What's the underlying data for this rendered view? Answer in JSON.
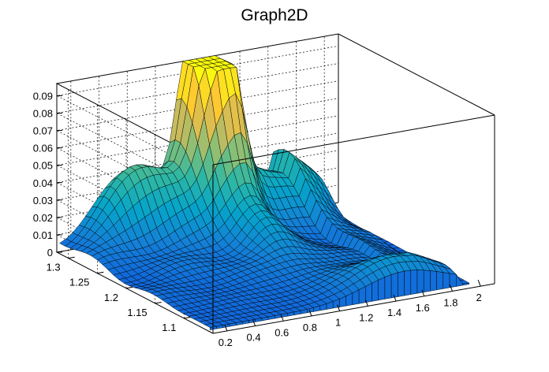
{
  "chart_data": {
    "type": "surface",
    "title": "Graph2D",
    "xlim": [
      0.1,
      2.1
    ],
    "ylim": [
      1.05,
      1.32
    ],
    "zlim": [
      0,
      0.097
    ],
    "x_ticks": [
      "0.2",
      "0.4",
      "0.6",
      "0.8",
      "1",
      "1.2",
      "1.4",
      "1.6",
      "1.8",
      "2"
    ],
    "x_tick_values": [
      0.2,
      0.4,
      0.6,
      0.8,
      1.0,
      1.2,
      1.4,
      1.6,
      1.8,
      2.0
    ],
    "y_ticks": [
      "1.1",
      "1.15",
      "1.2",
      "1.25",
      "1.3"
    ],
    "y_tick_values": [
      1.1,
      1.15,
      1.2,
      1.25,
      1.3
    ],
    "z_ticks": [
      "0",
      "0.01",
      "0.02",
      "0.03",
      "0.04",
      "0.05",
      "0.06",
      "0.07",
      "0.08",
      "0.09"
    ],
    "z_tick_values": [
      0,
      0.01,
      0.02,
      0.03,
      0.04,
      0.05,
      0.06,
      0.07,
      0.08,
      0.09
    ],
    "grid": true,
    "colormap": [
      "#352a87",
      "#0f5cdd",
      "#1481d6",
      "#06a4ca",
      "#2eb7a4",
      "#87bf77",
      "#d1bb59",
      "#fec832",
      "#f9fb0e"
    ],
    "peaks": [
      {
        "x": 1.05,
        "y": 1.32,
        "z": 0.095
      },
      {
        "x": 1.2,
        "y": 1.3,
        "z": 0.09
      }
    ],
    "surface_points": [
      {
        "x": 0.6,
        "y": 1.3,
        "z": 0.03
      },
      {
        "x": 1.1,
        "y": 1.22,
        "z": 0.03
      },
      {
        "x": 1.5,
        "y": 1.3,
        "z": 0.04
      },
      {
        "x": 1.5,
        "y": 1.1,
        "z": 0.02
      },
      {
        "x": 2.0,
        "y": 1.2,
        "z": 0.0
      }
    ]
  }
}
